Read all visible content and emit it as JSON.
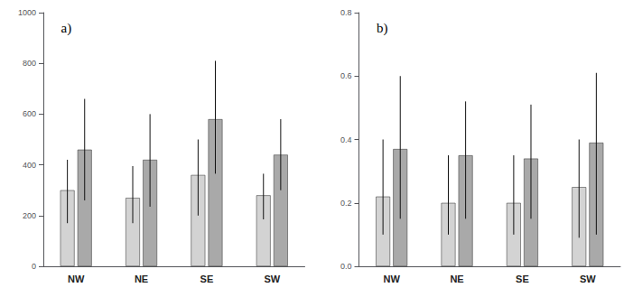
{
  "chart_data": [
    {
      "type": "bar",
      "title": "a)",
      "categories": [
        "NW",
        "NE",
        "SE",
        "SW"
      ],
      "series": [
        {
          "color": "#d3d3d3",
          "values": [
            300,
            270,
            360,
            280
          ],
          "yerr_low": [
            130,
            100,
            160,
            95
          ],
          "yerr_high": [
            120,
            125,
            140,
            85
          ]
        },
        {
          "color": "#a9a9a9",
          "values": [
            460,
            420,
            580,
            440
          ],
          "yerr_low": [
            200,
            185,
            215,
            140
          ],
          "yerr_high": [
            200,
            180,
            230,
            140
          ]
        }
      ],
      "ylim": [
        0,
        1000
      ],
      "yticks": [
        0,
        200,
        400,
        600,
        800,
        1000
      ],
      "grid": false
    },
    {
      "type": "bar",
      "title": "b)",
      "categories": [
        "NW",
        "NE",
        "SE",
        "SW"
      ],
      "series": [
        {
          "color": "#d3d3d3",
          "values": [
            0.22,
            0.2,
            0.2,
            0.25
          ],
          "yerr_low": [
            0.12,
            0.1,
            0.1,
            0.16
          ],
          "yerr_high": [
            0.18,
            0.15,
            0.15,
            0.15
          ]
        },
        {
          "color": "#a9a9a9",
          "values": [
            0.37,
            0.35,
            0.34,
            0.39
          ],
          "yerr_low": [
            0.22,
            0.2,
            0.19,
            0.29
          ],
          "yerr_high": [
            0.23,
            0.17,
            0.17,
            0.22
          ]
        }
      ],
      "ylim": [
        0,
        0.8
      ],
      "yticks": [
        {
          "value": 0,
          "label": "0.0"
        },
        0.2,
        0.4,
        0.6,
        0.8
      ],
      "grid": false
    }
  ]
}
